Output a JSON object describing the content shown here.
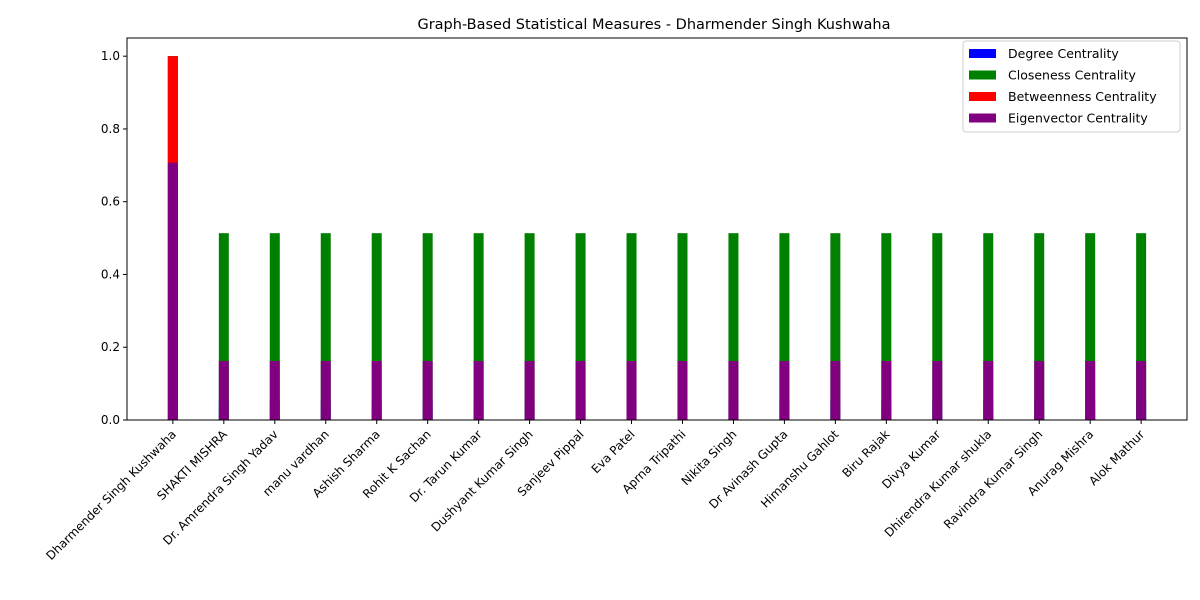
{
  "chart_data": {
    "type": "bar",
    "title": "Graph-Based Statistical Measures - Dharmender Singh Kushwaha",
    "xlabel": "",
    "ylabel": "",
    "ylim": [
      0,
      1.05
    ],
    "yticks": [
      0.0,
      0.2,
      0.4,
      0.6,
      0.8,
      1.0
    ],
    "ytick_labels": [
      "0.0",
      "0.2",
      "0.4",
      "0.6",
      "0.8",
      "1.0"
    ],
    "legend_position": "top-right",
    "grid": false,
    "categories": [
      "Dharmender Singh Kushwaha",
      "SHAKTI MISHRA",
      "Dr. Amrendra Singh Yadav",
      "manu vardhan",
      "Ashish Sharma",
      "Rohit K Sachan",
      "Dr. Tarun Kumar",
      "Dushyant Kumar Singh",
      "Sanjeev Pippal",
      "Eva Patel",
      "Aprna Tripathi",
      "Nikita Singh",
      "Dr Avinash Gupta",
      "Himanshu Gahlot",
      "Biru Rajak",
      "Divya  Kumar",
      "Dhirendra Kumar shukla",
      "Ravindra Kumar Singh",
      "Anurag Mishra",
      "Alok Mathur"
    ],
    "series": [
      {
        "name": "Degree Centrality",
        "color": "#0000ff",
        "values": [
          1.0,
          0.0526,
          0.0526,
          0.0526,
          0.0526,
          0.0526,
          0.0526,
          0.0526,
          0.0526,
          0.0526,
          0.0526,
          0.0526,
          0.0526,
          0.0526,
          0.0526,
          0.0526,
          0.0526,
          0.0526,
          0.0526,
          0.0526
        ]
      },
      {
        "name": "Closeness Centrality",
        "color": "#008000",
        "values": [
          1.0,
          0.5135,
          0.5135,
          0.5135,
          0.5135,
          0.5135,
          0.5135,
          0.5135,
          0.5135,
          0.5135,
          0.5135,
          0.5135,
          0.5135,
          0.5135,
          0.5135,
          0.5135,
          0.5135,
          0.5135,
          0.5135,
          0.5135
        ]
      },
      {
        "name": "Betweenness Centrality",
        "color": "#ff0000",
        "values": [
          1.0,
          0.0,
          0.0,
          0.0,
          0.0,
          0.0,
          0.0,
          0.0,
          0.0,
          0.0,
          0.0,
          0.0,
          0.0,
          0.0,
          0.0,
          0.0,
          0.0,
          0.0,
          0.0,
          0.0
        ]
      },
      {
        "name": "Eigenvector Centrality",
        "color": "#800080",
        "values": [
          0.7071,
          0.1622,
          0.1622,
          0.1622,
          0.1622,
          0.1622,
          0.1622,
          0.1622,
          0.1622,
          0.1622,
          0.1622,
          0.1622,
          0.1622,
          0.1622,
          0.1622,
          0.1622,
          0.1622,
          0.1622,
          0.1622,
          0.1622
        ]
      }
    ]
  }
}
